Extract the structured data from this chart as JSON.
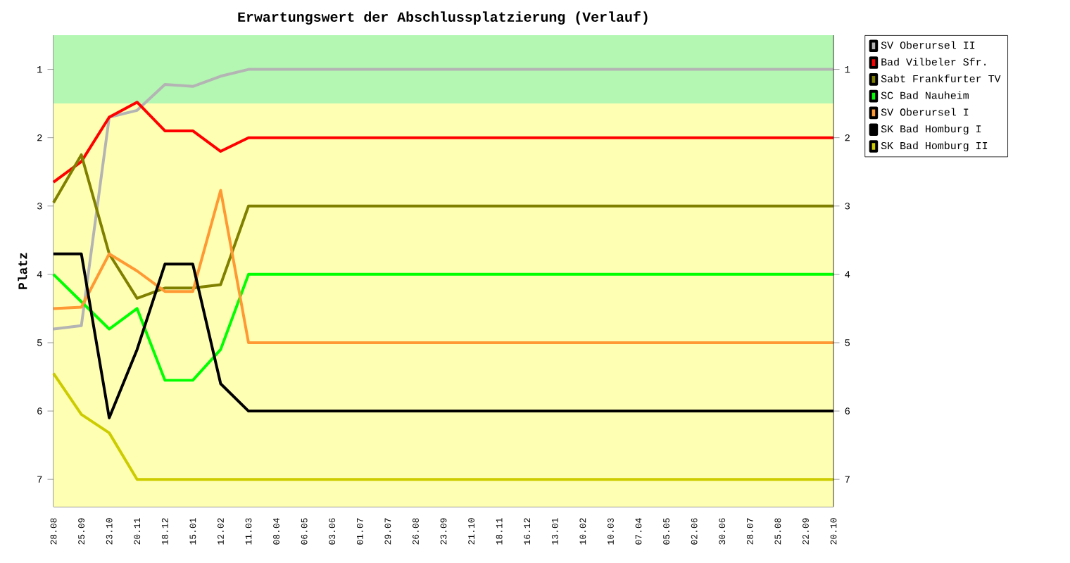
{
  "chart_data": {
    "type": "line",
    "title": "Erwartungswert der Abschlussplatzierung (Verlauf)",
    "ylabel": "Platz",
    "categories": [
      "28.08",
      "25.09",
      "23.10",
      "20.11",
      "18.12",
      "15.01",
      "12.02",
      "11.03",
      "08.04",
      "06.05",
      "03.06",
      "01.07",
      "29.07",
      "26.08",
      "23.09",
      "21.10",
      "18.11",
      "16.12",
      "13.01",
      "10.02",
      "10.03",
      "07.04",
      "05.05",
      "02.06",
      "30.06",
      "28.07",
      "25.08",
      "22.09",
      "20.10"
    ],
    "series": [
      {
        "name": "SV Oberursel II",
        "color": "#b4b4b4",
        "values": [
          4.8,
          4.75,
          1.7,
          1.6,
          1.22,
          1.25,
          1.1,
          1,
          1,
          1,
          1,
          1,
          1,
          1,
          1,
          1,
          1,
          1,
          1,
          1,
          1,
          1,
          1,
          1,
          1,
          1,
          1,
          1,
          1
        ]
      },
      {
        "name": "Bad Vilbeler Sfr.",
        "color": "#ff0000",
        "values": [
          2.65,
          2.35,
          1.7,
          1.48,
          1.9,
          1.9,
          2.2,
          2,
          2,
          2,
          2,
          2,
          2,
          2,
          2,
          2,
          2,
          2,
          2,
          2,
          2,
          2,
          2,
          2,
          2,
          2,
          2,
          2,
          2
        ]
      },
      {
        "name": "Sabt Frankfurter TV",
        "color": "#808000",
        "values": [
          2.95,
          2.25,
          3.7,
          4.35,
          4.2,
          4.2,
          4.15,
          3,
          3,
          3,
          3,
          3,
          3,
          3,
          3,
          3,
          3,
          3,
          3,
          3,
          3,
          3,
          3,
          3,
          3,
          3,
          3,
          3,
          3
        ]
      },
      {
        "name": "SC Bad Nauheim",
        "color": "#00ff00",
        "values": [
          4.0,
          4.4,
          4.8,
          4.5,
          5.55,
          5.55,
          5.1,
          4,
          4,
          4,
          4,
          4,
          4,
          4,
          4,
          4,
          4,
          4,
          4,
          4,
          4,
          4,
          4,
          4,
          4,
          4,
          4,
          4,
          4
        ]
      },
      {
        "name": "SV Oberursel I",
        "color": "#ff9933",
        "values": [
          4.5,
          4.48,
          3.7,
          3.95,
          4.25,
          4.25,
          2.77,
          5,
          5,
          5,
          5,
          5,
          5,
          5,
          5,
          5,
          5,
          5,
          5,
          5,
          5,
          5,
          5,
          5,
          5,
          5,
          5,
          5,
          5
        ]
      },
      {
        "name": "SK Bad Homburg I",
        "color": "#000000",
        "values": [
          3.7,
          3.7,
          6.1,
          5.1,
          3.85,
          3.85,
          5.6,
          6,
          6,
          6,
          6,
          6,
          6,
          6,
          6,
          6,
          6,
          6,
          6,
          6,
          6,
          6,
          6,
          6,
          6,
          6,
          6,
          6,
          6
        ]
      },
      {
        "name": "SK Bad Homburg II",
        "color": "#cccc00",
        "values": [
          5.45,
          6.05,
          6.32,
          7,
          7,
          7,
          7,
          7,
          7,
          7,
          7,
          7,
          7,
          7,
          7,
          7,
          7,
          7,
          7,
          7,
          7,
          7,
          7,
          7,
          7,
          7,
          7,
          7,
          7
        ]
      }
    ],
    "ylim": [
      7.4,
      0.5
    ],
    "yticks": [
      1,
      2,
      3,
      4,
      5,
      6,
      7
    ],
    "y2lim": [
      7.4,
      0.5
    ],
    "y2ticks": [
      1,
      2,
      3,
      4,
      5,
      6,
      7
    ],
    "bands": [
      {
        "axis": "y",
        "from": 0.5,
        "to": 1.5,
        "color": "#b3f7b3"
      },
      {
        "axis": "y",
        "from": 1.5,
        "to": 7.4,
        "color": "#ffffb3"
      }
    ],
    "legend": "right",
    "grid": false
  }
}
